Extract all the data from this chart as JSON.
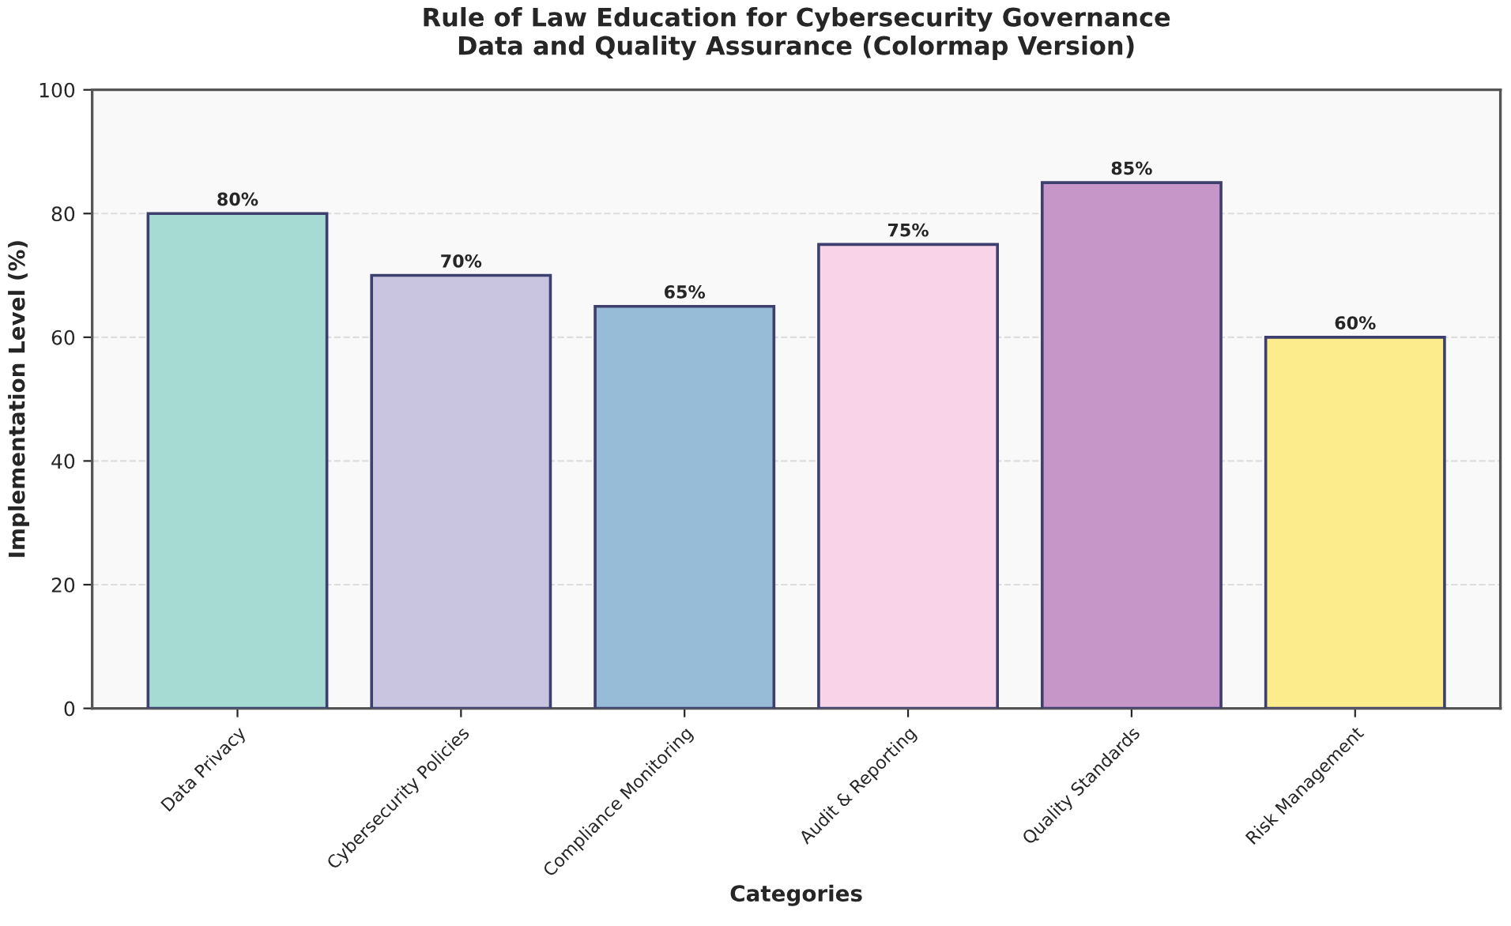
{
  "chart_data": {
    "type": "bar",
    "title": "Rule of Law Education for Cybersecurity Governance\nData and Quality Assurance (Colormap Version)",
    "xlabel": "Categories",
    "ylabel": "Implementation Level (%)",
    "categories": [
      "Data Privacy",
      "Cybersecurity Policies",
      "Compliance Monitoring",
      "Audit & Reporting",
      "Quality Standards",
      "Risk Management"
    ],
    "values": [
      80,
      70,
      65,
      75,
      85,
      60
    ],
    "colors": [
      "#a6dbd4",
      "#c9c5e0",
      "#97bcd8",
      "#f9d4e8",
      "#c796c8",
      "#fcec8c"
    ],
    "value_labels": [
      "80%",
      "70%",
      "65%",
      "75%",
      "85%",
      "60%"
    ],
    "ylim": [
      0,
      100
    ],
    "yticks": [
      0,
      20,
      40,
      60,
      80,
      100
    ],
    "grid": "y"
  }
}
